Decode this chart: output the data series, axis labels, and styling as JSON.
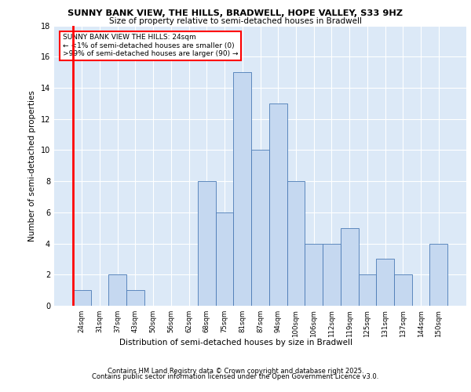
{
  "title1": "SUNNY BANK VIEW, THE HILLS, BRADWELL, HOPE VALLEY, S33 9HZ",
  "title2": "Size of property relative to semi-detached houses in Bradwell",
  "xlabel": "Distribution of semi-detached houses by size in Bradwell",
  "ylabel": "Number of semi-detached properties",
  "categories": [
    "24sqm",
    "31sqm",
    "37sqm",
    "43sqm",
    "50sqm",
    "56sqm",
    "62sqm",
    "68sqm",
    "75sqm",
    "81sqm",
    "87sqm",
    "94sqm",
    "100sqm",
    "106sqm",
    "112sqm",
    "119sqm",
    "125sqm",
    "131sqm",
    "137sqm",
    "144sqm",
    "150sqm"
  ],
  "values": [
    1,
    0,
    2,
    1,
    0,
    0,
    0,
    8,
    6,
    15,
    10,
    13,
    8,
    4,
    4,
    5,
    2,
    3,
    2,
    0,
    4
  ],
  "bar_color": "#c5d8f0",
  "bar_edge_color": "#4a7ab5",
  "highlight_color": "#ff0000",
  "annotation_text": "SUNNY BANK VIEW THE HILLS: 24sqm\n← <1% of semi-detached houses are smaller (0)\n>99% of semi-detached houses are larger (90) →",
  "ylim": [
    0,
    18
  ],
  "yticks": [
    0,
    2,
    4,
    6,
    8,
    10,
    12,
    14,
    16,
    18
  ],
  "background_color": "#dce9f7",
  "grid_color": "#ffffff",
  "footer1": "Contains HM Land Registry data © Crown copyright and database right 2025.",
  "footer2": "Contains public sector information licensed under the Open Government Licence v3.0."
}
